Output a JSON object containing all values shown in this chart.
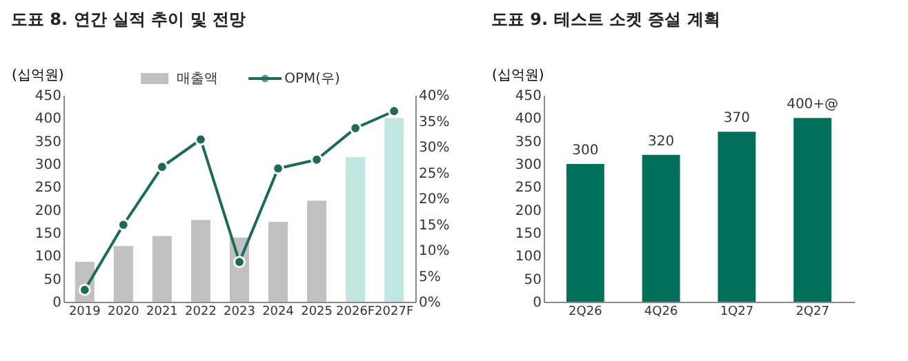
{
  "chart_data": [
    {
      "type": "bar",
      "title": "도표 8. 연간 실적 추이 및 전망",
      "ylabel": "(십억원)",
      "categories": [
        "2019",
        "2020",
        "2021",
        "2022",
        "2023",
        "2024",
        "2025",
        "2026F",
        "2027F"
      ],
      "series": [
        {
          "name": "매출액",
          "color": "#c0c0c0",
          "colors": [
            "#c0c0c0",
            "#c0c0c0",
            "#c0c0c0",
            "#c0c0c0",
            "#c0c0c0",
            "#c0c0c0",
            "#c0c0c0",
            "#bfe6e0",
            "#bfe6e0"
          ],
          "values": [
            87,
            121,
            143,
            178,
            140,
            174,
            220,
            315,
            400
          ]
        },
        {
          "name": "OPM(우)",
          "type": "line",
          "axis": "y2",
          "color": "#1a6b5a",
          "marker": "circle",
          "values": [
            2.3,
            14.9,
            26.1,
            31.4,
            7.7,
            25.8,
            27.5,
            33.6,
            36.9
          ]
        }
      ],
      "ylim": [
        0,
        450
      ],
      "yticks": [
        0,
        50,
        100,
        150,
        200,
        250,
        300,
        350,
        400,
        450
      ],
      "y2lim": [
        0,
        40
      ],
      "y2ticks": [
        {
          "value": 0,
          "label": "0%"
        },
        {
          "value": 5,
          "label": "5%"
        },
        {
          "value": 10,
          "label": "10%"
        },
        {
          "value": 15,
          "label": "15%"
        },
        {
          "value": 20,
          "label": "20%"
        },
        {
          "value": 25,
          "label": "25%"
        },
        {
          "value": 30,
          "label": "30%"
        },
        {
          "value": 35,
          "label": "35%"
        },
        {
          "value": 40,
          "label": "40%"
        }
      ],
      "legend": "top",
      "grid": false
    },
    {
      "type": "bar",
      "title": "도표 9. 테스트 소켓 증설 계획",
      "ylabel": "(십억원)",
      "categories": [
        "2Q26",
        "4Q26",
        "1Q27",
        "2Q27"
      ],
      "series": [
        {
          "color": "#00705a",
          "values": [
            300,
            320,
            370,
            400
          ],
          "value_labels": [
            "300",
            "320",
            "370",
            "400+@"
          ]
        }
      ],
      "ylim": [
        0,
        450
      ],
      "yticks": [
        0,
        50,
        100,
        150,
        200,
        250,
        300,
        350,
        400,
        450
      ],
      "grid": false
    }
  ]
}
